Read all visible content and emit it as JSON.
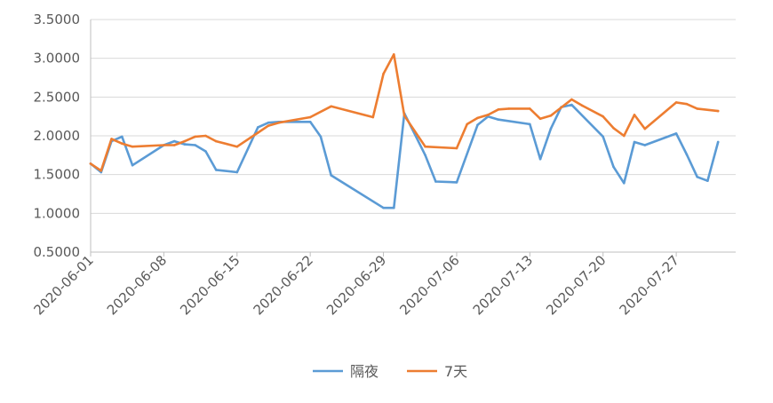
{
  "chart_data": {
    "type": "line",
    "title": "",
    "xlabel": "",
    "ylabel": "",
    "ylim": [
      0.5,
      3.5
    ],
    "y_ticks": [
      "0.5000",
      "1.0000",
      "1.5000",
      "2.0000",
      "2.5000",
      "3.0000",
      "3.5000"
    ],
    "x_ticks": [
      "2020-06-01",
      "2020-06-08",
      "2020-06-15",
      "2020-06-22",
      "2020-06-29",
      "2020-07-06",
      "2020-07-13",
      "2020-07-20",
      "2020-07-27"
    ],
    "grid": "horizontal",
    "legend_position": "bottom-center",
    "series": [
      {
        "name": "隔夜",
        "color": "#5B9BD5",
        "points": [
          [
            "2020-06-01",
            1.64
          ],
          [
            "2020-06-02",
            1.53
          ],
          [
            "2020-06-03",
            1.93
          ],
          [
            "2020-06-04",
            1.99
          ],
          [
            "2020-06-05",
            1.62
          ],
          [
            "2020-06-08",
            1.88
          ],
          [
            "2020-06-09",
            1.93
          ],
          [
            "2020-06-10",
            1.89
          ],
          [
            "2020-06-11",
            1.88
          ],
          [
            "2020-06-12",
            1.8
          ],
          [
            "2020-06-13",
            1.56
          ],
          [
            "2020-06-15",
            1.53
          ],
          [
            "2020-06-17",
            2.11
          ],
          [
            "2020-06-18",
            2.17
          ],
          [
            "2020-06-19",
            2.18
          ],
          [
            "2020-06-22",
            2.18
          ],
          [
            "2020-06-23",
            1.99
          ],
          [
            "2020-06-24",
            1.49
          ],
          [
            "2020-06-29",
            1.07
          ],
          [
            "2020-06-30",
            1.07
          ],
          [
            "2020-07-01",
            2.29
          ],
          [
            "2020-07-03",
            1.75
          ],
          [
            "2020-07-04",
            1.41
          ],
          [
            "2020-07-06",
            1.4
          ],
          [
            "2020-07-08",
            2.14
          ],
          [
            "2020-07-09",
            2.25
          ],
          [
            "2020-07-10",
            2.21
          ],
          [
            "2020-07-13",
            2.15
          ],
          [
            "2020-07-14",
            1.7
          ],
          [
            "2020-07-15",
            2.09
          ],
          [
            "2020-07-16",
            2.37
          ],
          [
            "2020-07-17",
            2.4
          ],
          [
            "2020-07-20",
            1.99
          ],
          [
            "2020-07-21",
            1.6
          ],
          [
            "2020-07-22",
            1.39
          ],
          [
            "2020-07-23",
            1.92
          ],
          [
            "2020-07-24",
            1.88
          ],
          [
            "2020-07-27",
            2.03
          ],
          [
            "2020-07-28",
            1.76
          ],
          [
            "2020-07-29",
            1.47
          ],
          [
            "2020-07-30",
            1.42
          ],
          [
            "2020-07-31",
            1.92
          ]
        ]
      },
      {
        "name": "7天",
        "color": "#ED7D31",
        "points": [
          [
            "2020-06-01",
            1.64
          ],
          [
            "2020-06-02",
            1.55
          ],
          [
            "2020-06-03",
            1.96
          ],
          [
            "2020-06-04",
            1.9
          ],
          [
            "2020-06-05",
            1.86
          ],
          [
            "2020-06-08",
            1.88
          ],
          [
            "2020-06-09",
            1.88
          ],
          [
            "2020-06-10",
            1.93
          ],
          [
            "2020-06-11",
            1.99
          ],
          [
            "2020-06-12",
            2.0
          ],
          [
            "2020-06-13",
            1.93
          ],
          [
            "2020-06-15",
            1.86
          ],
          [
            "2020-06-17",
            2.04
          ],
          [
            "2020-06-18",
            2.13
          ],
          [
            "2020-06-19",
            2.17
          ],
          [
            "2020-06-22",
            2.24
          ],
          [
            "2020-06-24",
            2.38
          ],
          [
            "2020-06-28",
            2.24
          ],
          [
            "2020-06-29",
            2.8
          ],
          [
            "2020-06-30",
            3.05
          ],
          [
            "2020-07-01",
            2.26
          ],
          [
            "2020-07-03",
            1.86
          ],
          [
            "2020-07-06",
            1.84
          ],
          [
            "2020-07-07",
            2.15
          ],
          [
            "2020-07-08",
            2.23
          ],
          [
            "2020-07-09",
            2.27
          ],
          [
            "2020-07-10",
            2.34
          ],
          [
            "2020-07-11",
            2.35
          ],
          [
            "2020-07-13",
            2.35
          ],
          [
            "2020-07-14",
            2.22
          ],
          [
            "2020-07-15",
            2.26
          ],
          [
            "2020-07-17",
            2.47
          ],
          [
            "2020-07-18",
            2.39
          ],
          [
            "2020-07-20",
            2.25
          ],
          [
            "2020-07-21",
            2.1
          ],
          [
            "2020-07-22",
            2.0
          ],
          [
            "2020-07-23",
            2.27
          ],
          [
            "2020-07-24",
            2.09
          ],
          [
            "2020-07-27",
            2.43
          ],
          [
            "2020-07-28",
            2.41
          ],
          [
            "2020-07-29",
            2.35
          ],
          [
            "2020-07-31",
            2.32
          ]
        ]
      }
    ]
  }
}
